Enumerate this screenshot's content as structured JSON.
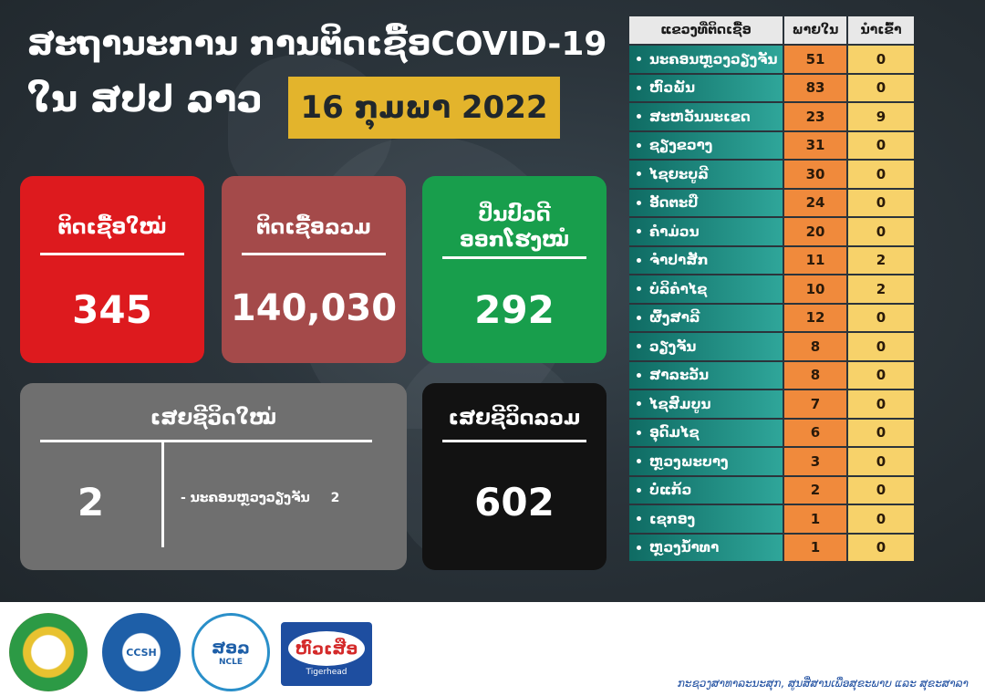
{
  "header": {
    "title": "ສະຖານະການ ການຕິດເຊື້ອCOVID-19",
    "subtitle": "ໃນ ສປປ ລາວ",
    "date": "16 ກຸມພາ 2022"
  },
  "cards": {
    "new_cases": {
      "label": "ຕິດເຊື້ອໃໝ່",
      "value": "345"
    },
    "total_cases": {
      "label": "ຕິດເຊື້ອລວມ",
      "value": "140,030"
    },
    "recovered": {
      "label_line1": "ປິ່ນປົວດີ",
      "label_line2": "ອອກໂຮງໝໍ",
      "value": "292"
    },
    "new_deaths": {
      "label": "ເສຍຊີວິດໃໝ່",
      "value": "2",
      "detail": "- ນະຄອນຫຼວງວຽງຈັນ",
      "detail_count": "2"
    },
    "total_deaths": {
      "label": "ເສຍຊີວິດລວມ",
      "value": "602"
    }
  },
  "table": {
    "headers": [
      "ແຂວງທີ່ຕິດເຊື້ອ",
      "ພາຍໃນ",
      "ນຳເຂົ້າ"
    ],
    "rows": [
      {
        "province": "ນະຄອນຫຼວງວຽງຈັນ",
        "local": "51",
        "imported": "0"
      },
      {
        "province": "ຫົວພັນ",
        "local": "83",
        "imported": "0"
      },
      {
        "province": "ສະຫວັນນະເຂດ",
        "local": "23",
        "imported": "9"
      },
      {
        "province": "ຊຽງຂວາງ",
        "local": "31",
        "imported": "0"
      },
      {
        "province": "ໄຊຍະບູລີ",
        "local": "30",
        "imported": "0"
      },
      {
        "province": "ອັດຕະປື",
        "local": "24",
        "imported": "0"
      },
      {
        "province": "ຄຳມ່ວນ",
        "local": "20",
        "imported": "0"
      },
      {
        "province": "ຈຳປາສັກ",
        "local": "11",
        "imported": "2"
      },
      {
        "province": "ບໍລິຄຳໄຊ",
        "local": "10",
        "imported": "2"
      },
      {
        "province": "ຜົ້ງສາລີ",
        "local": "12",
        "imported": "0"
      },
      {
        "province": "ວຽງຈັນ",
        "local": "8",
        "imported": "0"
      },
      {
        "province": "ສາລະວັນ",
        "local": "8",
        "imported": "0"
      },
      {
        "province": "ໄຊສົມບູນ",
        "local": "7",
        "imported": "0"
      },
      {
        "province": "ອຸດົມໄຊ",
        "local": "6",
        "imported": "0"
      },
      {
        "province": "ຫຼວງພະບາງ",
        "local": "3",
        "imported": "0"
      },
      {
        "province": "ບໍ່ແກ້ວ",
        "local": "2",
        "imported": "0"
      },
      {
        "province": "ເຊກອງ",
        "local": "1",
        "imported": "0"
      },
      {
        "province": "ຫຼວງນ້ຳທາ",
        "local": "1",
        "imported": "0"
      }
    ]
  },
  "footer": {
    "logos": {
      "ministry": "ministry-of-health-emblem",
      "ccsh": "CCSH",
      "ncle": "ສອລ",
      "ncle_sub": "NCLE",
      "tigerhead": "ຫົວເສືອ",
      "tigerhead_sub": "Tigerhead"
    },
    "credit": "ກະຊວງສາທາລະນະສຸກ, ສູນສື່ສານເພື່ອສຸຂະພາບ ແລະ ສຸຂະສາລາ"
  },
  "colors": {
    "new_cases": "#dd1a1e",
    "total_cases": "#a44a4a",
    "recovered": "#189e4c",
    "new_deaths": "#6f6f6f",
    "total_deaths": "#121212",
    "date_highlight": "#e3b42c",
    "local_column": "#f08a3c",
    "imported_column": "#f7d26a",
    "province_column": "#1f8a80"
  }
}
